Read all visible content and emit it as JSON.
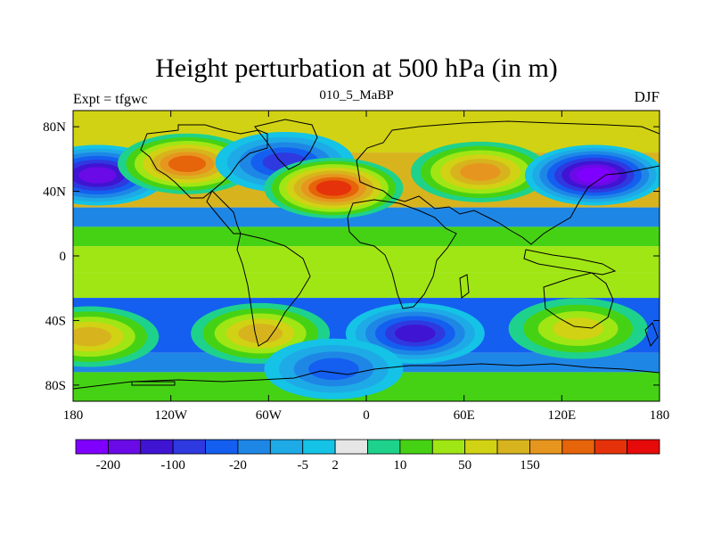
{
  "chart_data": {
    "type": "heatmap",
    "title": "Height perturbation at 500 hPa (in m)",
    "left_label": "Expt = tfgwc",
    "center_label": "010_5_MaBP",
    "right_label": "DJF",
    "xlim": [
      -180,
      180
    ],
    "ylim": [
      -90,
      90
    ],
    "x_ticks": [
      {
        "value": -180,
        "label": "180"
      },
      {
        "value": -120,
        "label": "120W"
      },
      {
        "value": -60,
        "label": "60W"
      },
      {
        "value": 0,
        "label": "0"
      },
      {
        "value": 60,
        "label": "60E"
      },
      {
        "value": 120,
        "label": "120E"
      },
      {
        "value": 180,
        "label": "180"
      }
    ],
    "y_ticks": [
      {
        "value": 80,
        "label": "80N"
      },
      {
        "value": 40,
        "label": "40N"
      },
      {
        "value": 0,
        "label": "0"
      },
      {
        "value": -40,
        "label": "40S"
      },
      {
        "value": -80,
        "label": "80S"
      }
    ],
    "colorbar": {
      "colors": [
        "#7f00ff",
        "#6a0ae6",
        "#3f14d2",
        "#2e39e0",
        "#145ff0",
        "#1e87e6",
        "#1eaae6",
        "#14c3e6",
        "#e6e6e6",
        "#1ed28c",
        "#46d214",
        "#a0e614",
        "#d2d214",
        "#d7b41e",
        "#e6961e",
        "#e6640a",
        "#e6320a",
        "#e60a0a"
      ],
      "labels": [
        "-200",
        "-100",
        "-20",
        "-5",
        "2",
        "10",
        "50",
        "150"
      ],
      "label_after_box": [
        1,
        3,
        5,
        7,
        8,
        10,
        12,
        14
      ]
    },
    "features": [
      {
        "name": "north-pacific-low",
        "lon": -165,
        "lat": 50,
        "value": -160
      },
      {
        "name": "north-america-high",
        "lon": -110,
        "lat": 57,
        "value": 120
      },
      {
        "name": "north-atlantic-low",
        "lon": -50,
        "lat": 58,
        "value": -60
      },
      {
        "name": "eurasia-high",
        "lon": -20,
        "lat": 42,
        "value": 150
      },
      {
        "name": "asia-high",
        "lon": 70,
        "lat": 52,
        "value": 95
      },
      {
        "name": "east-asia-low",
        "lon": 140,
        "lat": 50,
        "value": -200
      },
      {
        "name": "south-indian-low",
        "lon": 30,
        "lat": -48,
        "value": -110
      },
      {
        "name": "south-atlantic-high",
        "lon": -65,
        "lat": -48,
        "value": 75
      },
      {
        "name": "south-pacific-high",
        "lon": -170,
        "lat": -50,
        "value": 60
      },
      {
        "name": "australia-high",
        "lon": 130,
        "lat": -45,
        "value": 40
      },
      {
        "name": "southern-ocean-low",
        "lon": -20,
        "lat": -70,
        "value": -35
      }
    ]
  }
}
